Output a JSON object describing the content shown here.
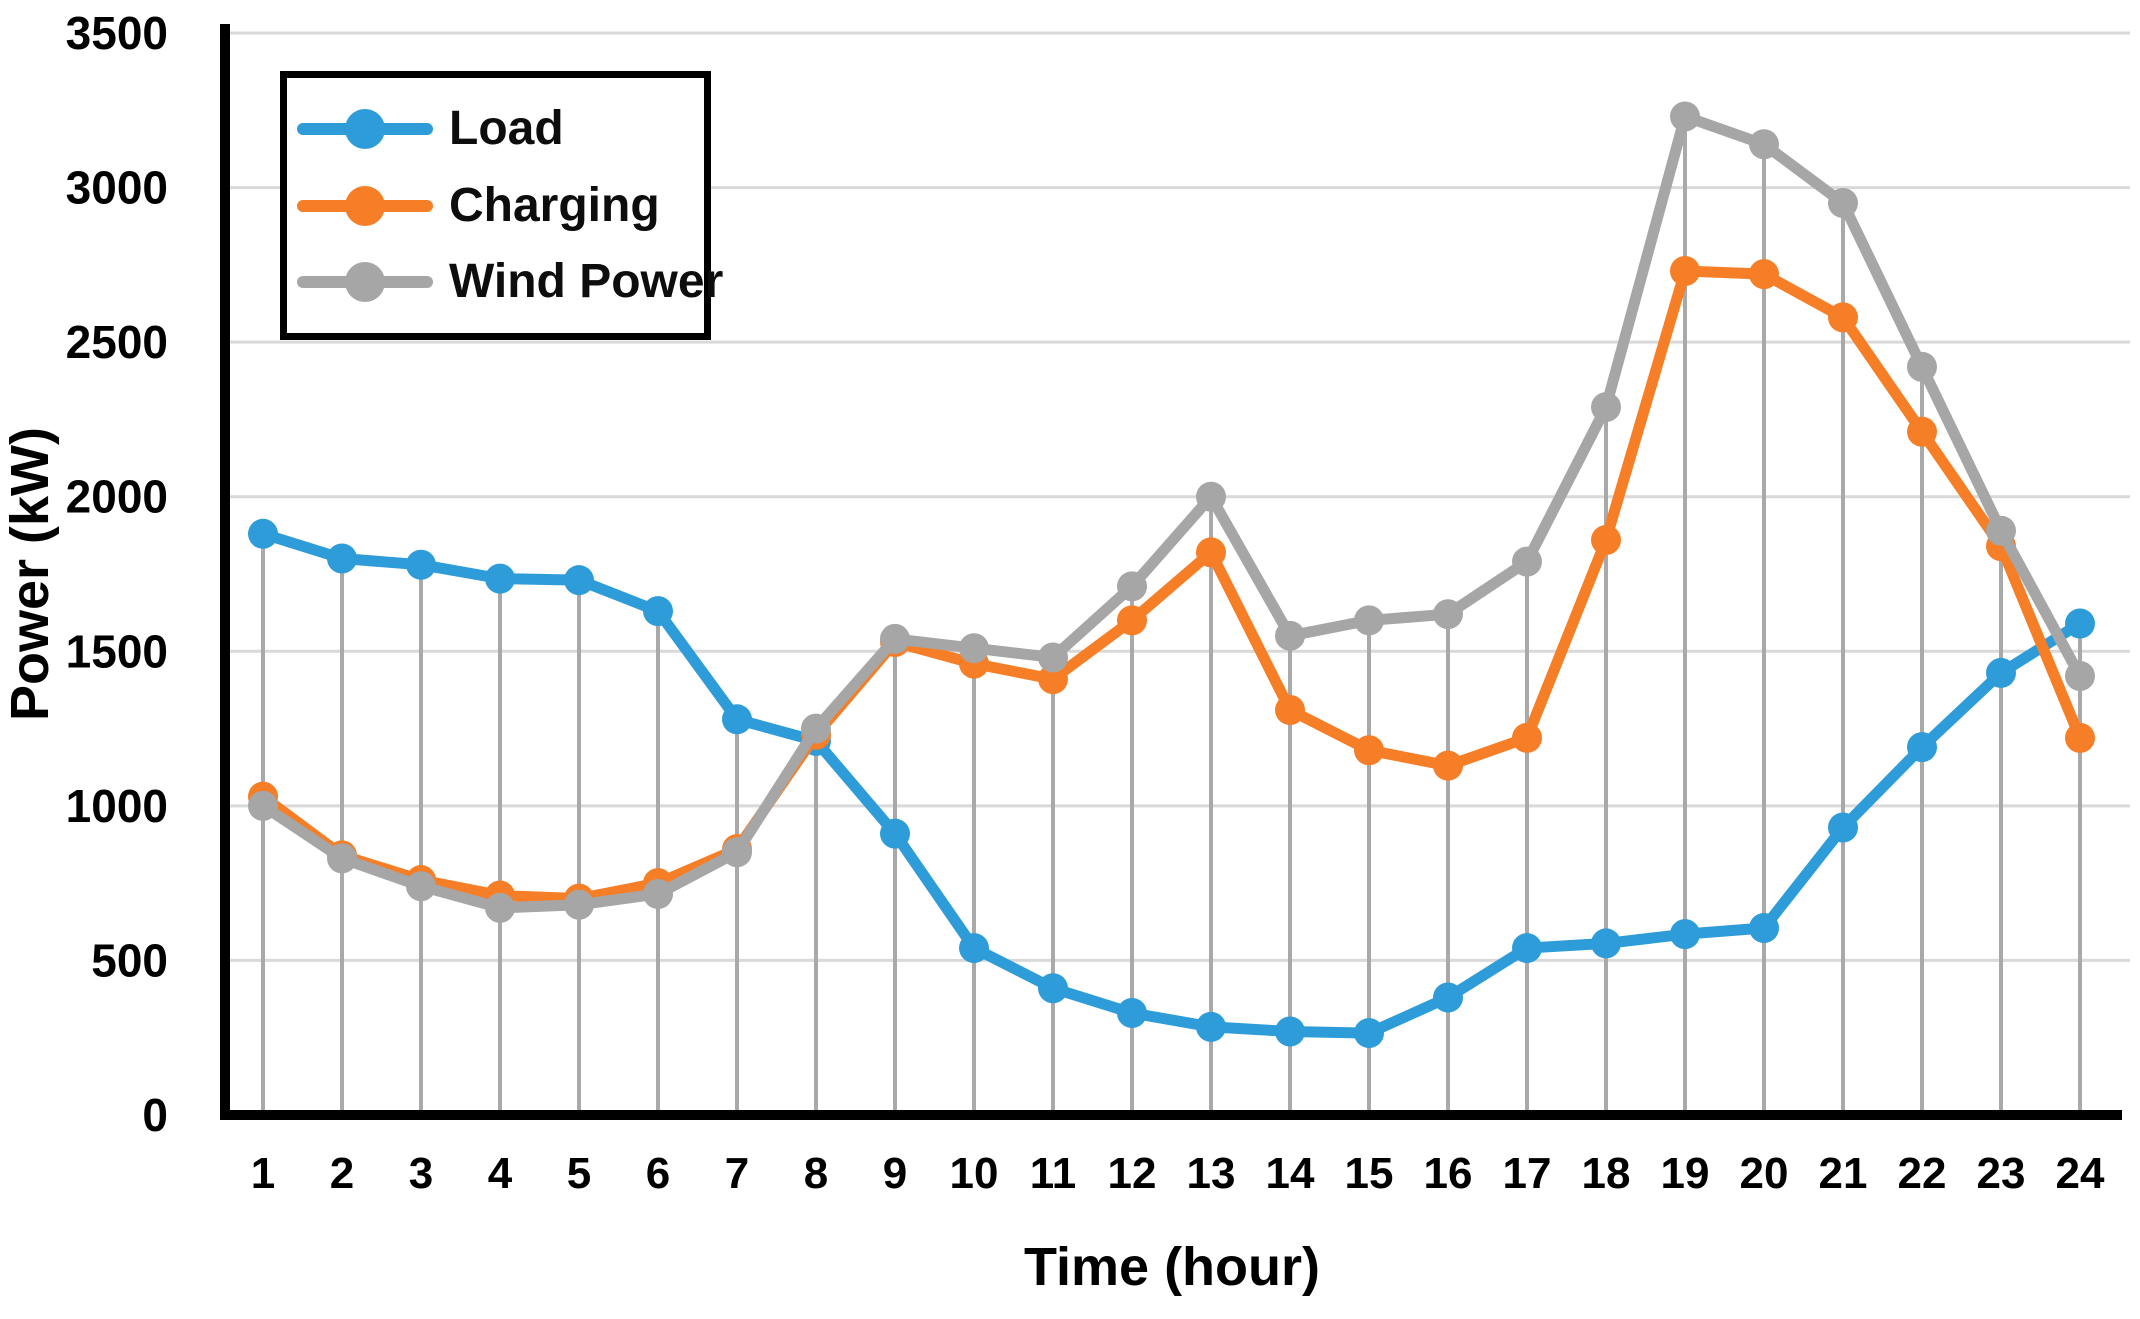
{
  "chart_data": {
    "type": "line",
    "title": "",
    "xlabel": "Time (hour)",
    "ylabel": "Power (kW)",
    "categories": [
      1,
      2,
      3,
      4,
      5,
      6,
      7,
      8,
      9,
      10,
      11,
      12,
      13,
      14,
      15,
      16,
      17,
      18,
      19,
      20,
      21,
      22,
      23,
      24
    ],
    "ylim": [
      0,
      3500
    ],
    "yticks": [
      0,
      500,
      1000,
      1500,
      2000,
      2500,
      3000,
      3500
    ],
    "grid": {
      "horizontal": true,
      "vertical_droplines_to_series_max": true
    },
    "legend_position": "top-left inside plot area",
    "series": [
      {
        "name": "Load",
        "color": "#2D9CD8",
        "values": [
          1880,
          1800,
          1780,
          1735,
          1730,
          1630,
          1280,
          1210,
          910,
          540,
          410,
          330,
          285,
          270,
          265,
          380,
          540,
          555,
          585,
          605,
          930,
          1190,
          1430,
          1590
        ]
      },
      {
        "name": "Charging",
        "color": "#F57E27",
        "values": [
          1030,
          840,
          760,
          710,
          700,
          750,
          860,
          1230,
          1530,
          1460,
          1410,
          1600,
          1820,
          1310,
          1180,
          1130,
          1220,
          1860,
          2730,
          2720,
          2580,
          2210,
          1840,
          1220
        ]
      },
      {
        "name": "Wind Power",
        "color": "#A6A6A6",
        "values": [
          1000,
          830,
          740,
          670,
          680,
          715,
          850,
          1250,
          1540,
          1510,
          1480,
          1710,
          2000,
          1550,
          1600,
          1620,
          1790,
          2290,
          3230,
          3140,
          2950,
          2420,
          1890,
          1420
        ]
      }
    ]
  },
  "style_colors": {
    "axis": "#000000",
    "horizontal_gridline": "#D9D9D9",
    "dropline": "#A9A9A9",
    "tick_label": "#000000",
    "background": "#FFFFFF"
  }
}
